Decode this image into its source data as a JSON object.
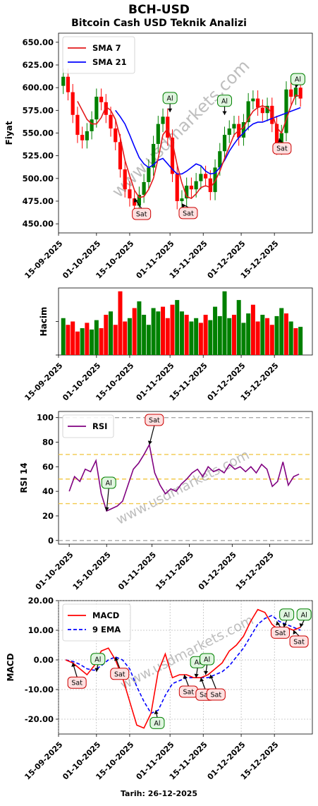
{
  "header": {
    "title": "BCH-USD",
    "subtitle": "Bitcoin Cash USD Teknik Analizi",
    "footer_date": "Tarih: 26-12-2025"
  },
  "watermark": "www.usdmarkets.com",
  "colors": {
    "up": "#008000",
    "down": "#ff0000",
    "sma7": "#e31a1c",
    "sma21": "#0000ff",
    "rsi": "#800080",
    "macd": "#ff0000",
    "ema9": "#0000ff",
    "buy_fill": "#dff5df",
    "buy_stroke": "#008000",
    "sell_fill": "#fde0e0",
    "sell_stroke": "#cc0000"
  },
  "chart_data": [
    {
      "type": "candlestick",
      "name": "price",
      "ylabel": "Fiyat",
      "ylim": [
        440,
        660
      ],
      "yticks": [
        450,
        475,
        500,
        525,
        550,
        575,
        600,
        625,
        650
      ],
      "ytick_labels": [
        "450.00",
        "475.00",
        "500.00",
        "525.00",
        "550.00",
        "575.00",
        "600.00",
        "625.00",
        "650.00"
      ],
      "x_range": [
        "2025-09-15",
        "2025-12-31"
      ],
      "x_ticks": [
        "2025-09-15",
        "2025-10-01",
        "2025-10-15",
        "2025-11-01",
        "2025-11-15",
        "2025-12-01",
        "2025-12-15"
      ],
      "x_tick_labels": [
        "15-09-2025",
        "01-10-2025",
        "15-10-2025",
        "01-11-2025",
        "15-11-2025",
        "01-12-2025",
        "15-12-2025"
      ],
      "grid": false,
      "legend": {
        "placement": "top-left",
        "entries": [
          "SMA 7",
          "SMA 21"
        ]
      },
      "dates": [
        "2025-09-17",
        "2025-09-19",
        "2025-09-21",
        "2025-09-23",
        "2025-09-25",
        "2025-09-27",
        "2025-09-29",
        "2025-10-01",
        "2025-10-03",
        "2025-10-05",
        "2025-10-07",
        "2025-10-09",
        "2025-10-11",
        "2025-10-13",
        "2025-10-15",
        "2025-10-17",
        "2025-10-19",
        "2025-10-21",
        "2025-10-23",
        "2025-10-25",
        "2025-10-27",
        "2025-10-29",
        "2025-10-31",
        "2025-11-02",
        "2025-11-04",
        "2025-11-06",
        "2025-11-08",
        "2025-11-10",
        "2025-11-12",
        "2025-11-14",
        "2025-11-16",
        "2025-11-18",
        "2025-11-20",
        "2025-11-22",
        "2025-11-24",
        "2025-11-26",
        "2025-11-28",
        "2025-11-30",
        "2025-12-02",
        "2025-12-04",
        "2025-12-06",
        "2025-12-08",
        "2025-12-10",
        "2025-12-12",
        "2025-12-14",
        "2025-12-16",
        "2025-12-18",
        "2025-12-20",
        "2025-12-22",
        "2025-12-24",
        "2025-12-26"
      ],
      "close": [
        612,
        595,
        570,
        548,
        542,
        552,
        565,
        590,
        584,
        570,
        555,
        540,
        510,
        488,
        478,
        470,
        482,
        496,
        512,
        538,
        560,
        568,
        545,
        505,
        475,
        478,
        492,
        488,
        497,
        505,
        500,
        485,
        512,
        530,
        548,
        555,
        560,
        545,
        562,
        585,
        588,
        578,
        572,
        580,
        560,
        535,
        550,
        598,
        590,
        600,
        588
      ],
      "sma7": [
        null,
        null,
        null,
        585,
        575,
        565,
        560,
        560,
        567,
        579,
        575,
        565,
        545,
        520,
        503,
        487,
        479,
        480,
        488,
        500,
        522,
        548,
        555,
        540,
        515,
        495,
        480,
        478,
        483,
        490,
        492,
        490,
        497,
        508,
        522,
        535,
        548,
        553,
        556,
        566,
        574,
        578,
        580,
        578,
        572,
        556,
        550,
        565,
        580,
        592,
        590
      ],
      "sma21": [
        null,
        null,
        null,
        null,
        null,
        null,
        null,
        null,
        null,
        null,
        null,
        575,
        568,
        560,
        548,
        535,
        523,
        516,
        512,
        515,
        520,
        522,
        516,
        510,
        505,
        505,
        508,
        512,
        516,
        514,
        508,
        505,
        506,
        512,
        520,
        530,
        538,
        545,
        550,
        556,
        560,
        562,
        562,
        564,
        566,
        568,
        570,
        572,
        574,
        576,
        578
      ],
      "annotations": [
        {
          "label": "Sat",
          "date": "2025-10-17",
          "value": 478,
          "side": "sell"
        },
        {
          "label": "Al",
          "date": "2025-11-01",
          "value": 573,
          "side": "buy"
        },
        {
          "label": "Sat",
          "date": "2025-11-06",
          "value": 472,
          "side": "sell"
        },
        {
          "label": "Al",
          "date": "2025-11-24",
          "value": 570,
          "side": "buy"
        },
        {
          "label": "Sat",
          "date": "2025-12-17",
          "value": 544,
          "side": "sell"
        },
        {
          "label": "Al",
          "date": "2025-12-24",
          "value": 600,
          "side": "buy"
        }
      ]
    },
    {
      "type": "bar",
      "name": "volume",
      "ylabel": "Hacim",
      "ylim": [
        0,
        1
      ],
      "x_ticks": [
        "2025-09-15",
        "2025-10-01",
        "2025-10-15",
        "2025-11-01",
        "2025-11-15",
        "2025-12-01",
        "2025-12-15"
      ],
      "x_tick_labels": [
        "15-09-2025",
        "01-10-2025",
        "15-10-2025",
        "01-11-2025",
        "15-11-2025",
        "01-12-2025",
        "15-12-2025"
      ],
      "values": [
        0.55,
        0.45,
        0.5,
        0.35,
        0.4,
        0.48,
        0.38,
        0.52,
        0.4,
        0.6,
        0.65,
        0.45,
        0.95,
        0.5,
        0.55,
        0.7,
        0.8,
        0.6,
        0.45,
        0.7,
        0.65,
        0.72,
        0.55,
        0.75,
        0.82,
        0.65,
        0.6,
        0.5,
        0.55,
        0.48,
        0.6,
        0.52,
        0.72,
        0.58,
        0.95,
        0.55,
        0.6,
        0.82,
        0.48,
        0.62,
        0.75,
        0.5,
        0.6,
        0.55,
        0.45,
        0.58,
        0.7,
        0.62,
        0.5,
        0.4,
        0.42
      ],
      "up": [
        true,
        false,
        false,
        false,
        true,
        false,
        true,
        true,
        false,
        false,
        true,
        false,
        false,
        false,
        true,
        false,
        true,
        true,
        true,
        true,
        true,
        false,
        false,
        false,
        true,
        true,
        false,
        true,
        true,
        false,
        false,
        true,
        true,
        true,
        true,
        true,
        false,
        true,
        true,
        true,
        false,
        false,
        true,
        false,
        false,
        true,
        true,
        false,
        true,
        false,
        true
      ]
    },
    {
      "type": "line",
      "name": "rsi",
      "ylabel": "RSI 14",
      "ylim": [
        -3,
        105
      ],
      "yticks": [
        0,
        20,
        40,
        60,
        80,
        100
      ],
      "hlines": [
        0,
        30,
        50,
        70,
        100
      ],
      "x_ticks": [
        "2025-10-01",
        "2025-10-15",
        "2025-11-01",
        "2025-11-15",
        "2025-12-01",
        "2025-12-15"
      ],
      "x_tick_labels": [
        "01-10-2025",
        "15-10-2025",
        "01-11-2025",
        "15-11-2025",
        "01-12-2025",
        "15-12-2025"
      ],
      "x_range": [
        "2025-09-27",
        "2025-12-31"
      ],
      "legend": {
        "placement": "top-left",
        "entries": [
          "RSI"
        ]
      },
      "dates": [
        "2025-10-01",
        "2025-10-03",
        "2025-10-05",
        "2025-10-07",
        "2025-10-09",
        "2025-10-11",
        "2025-10-13",
        "2025-10-15",
        "2025-10-17",
        "2025-10-19",
        "2025-10-21",
        "2025-10-23",
        "2025-10-25",
        "2025-10-27",
        "2025-10-29",
        "2025-10-31",
        "2025-11-02",
        "2025-11-04",
        "2025-11-06",
        "2025-11-08",
        "2025-11-10",
        "2025-11-12",
        "2025-11-14",
        "2025-11-16",
        "2025-11-18",
        "2025-11-20",
        "2025-11-22",
        "2025-11-24",
        "2025-11-26",
        "2025-11-28",
        "2025-11-30",
        "2025-12-02",
        "2025-12-04",
        "2025-12-06",
        "2025-12-08",
        "2025-12-10",
        "2025-12-12",
        "2025-12-14",
        "2025-12-16",
        "2025-12-18",
        "2025-12-20",
        "2025-12-22",
        "2025-12-24",
        "2025-12-26"
      ],
      "values": [
        40,
        52,
        48,
        58,
        56,
        65,
        38,
        24,
        26,
        28,
        32,
        45,
        58,
        63,
        70,
        78,
        55,
        45,
        38,
        42,
        40,
        46,
        50,
        55,
        58,
        52,
        60,
        56,
        58,
        55,
        62,
        58,
        60,
        56,
        60,
        55,
        62,
        58,
        44,
        48,
        64,
        45,
        52,
        54
      ],
      "annotations": [
        {
          "label": "Al",
          "date": "2025-10-15",
          "value": 24,
          "side": "buy"
        },
        {
          "label": "Sat",
          "date": "2025-10-31",
          "value": 78,
          "side": "sell"
        }
      ]
    },
    {
      "type": "line",
      "name": "macd",
      "ylabel": "MACD",
      "ylim": [
        -25,
        20
      ],
      "yticks": [
        -20,
        -10,
        0,
        10,
        20
      ],
      "ytick_labels": [
        "-20.00",
        "-10.00",
        "0.00",
        "10.00",
        "20.00"
      ],
      "grid": true,
      "x_ticks": [
        "2025-09-15",
        "2025-10-01",
        "2025-10-15",
        "2025-11-01",
        "2025-11-15",
        "2025-12-01",
        "2025-12-15"
      ],
      "x_tick_labels": [
        "15-09-2025",
        "01-10-2025",
        "15-10-2025",
        "01-11-2025",
        "15-11-2025",
        "01-12-2025",
        "15-12-2025"
      ],
      "xlabel": "Tarih: 26-12-2025",
      "legend": {
        "placement": "top-left",
        "entries": [
          "MACD",
          "9 EMA"
        ]
      },
      "dates": [
        "2025-09-18",
        "2025-09-21",
        "2025-09-24",
        "2025-09-27",
        "2025-09-30",
        "2025-10-03",
        "2025-10-06",
        "2025-10-09",
        "2025-10-12",
        "2025-10-15",
        "2025-10-18",
        "2025-10-21",
        "2025-10-24",
        "2025-10-27",
        "2025-10-30",
        "2025-11-02",
        "2025-11-05",
        "2025-11-08",
        "2025-11-11",
        "2025-11-14",
        "2025-11-17",
        "2025-11-20",
        "2025-11-23",
        "2025-11-26",
        "2025-11-29",
        "2025-12-02",
        "2025-12-05",
        "2025-12-08",
        "2025-12-11",
        "2025-12-14",
        "2025-12-17",
        "2025-12-20",
        "2025-12-23",
        "2025-12-26"
      ],
      "macd": [
        0,
        -1,
        -3,
        -5,
        -2,
        3,
        4,
        0,
        -6,
        -14,
        -22,
        -23,
        -18,
        -4,
        2,
        -6,
        -5,
        -5,
        -6,
        -6,
        -5,
        -3,
        -1,
        3,
        5,
        8,
        13,
        17,
        16,
        12,
        10,
        11,
        10,
        11
      ],
      "ema9": [
        0,
        -0.5,
        -1.5,
        -3,
        -3.5,
        -2,
        0,
        1,
        0,
        -3,
        -9,
        -14,
        -18,
        -17,
        -12,
        -8,
        -7,
        -6,
        -6,
        -6,
        -6,
        -5,
        -4,
        -2,
        1,
        4,
        8,
        12,
        14,
        15,
        13,
        12,
        11,
        10
      ],
      "annotations": [
        {
          "label": "Sat",
          "date": "2025-09-21",
          "value": -1,
          "side": "sell"
        },
        {
          "label": "Al",
          "date": "2025-10-01",
          "value": -4,
          "side": "buy"
        },
        {
          "label": "Sat",
          "date": "2025-10-09",
          "value": 1,
          "side": "sell"
        },
        {
          "label": "Al",
          "date": "2025-10-26",
          "value": -17,
          "side": "buy"
        },
        {
          "label": "Sat",
          "date": "2025-11-07",
          "value": -5,
          "side": "sell"
        },
        {
          "label": "Al",
          "date": "2025-11-12",
          "value": -6,
          "side": "buy"
        },
        {
          "label": "Sat",
          "date": "2025-11-14",
          "value": -6,
          "side": "sell"
        },
        {
          "label": "Al",
          "date": "2025-11-16",
          "value": -5,
          "side": "buy"
        },
        {
          "label": "Sat",
          "date": "2025-11-18",
          "value": -5,
          "side": "sell"
        },
        {
          "label": "Sat",
          "date": "2025-12-16",
          "value": 13,
          "side": "sell"
        },
        {
          "label": "Al",
          "date": "2025-12-19",
          "value": 11,
          "side": "buy"
        },
        {
          "label": "Sat",
          "date": "2025-12-23",
          "value": 10,
          "side": "sell"
        },
        {
          "label": "Al",
          "date": "2025-12-26",
          "value": 11,
          "side": "buy"
        }
      ]
    }
  ]
}
